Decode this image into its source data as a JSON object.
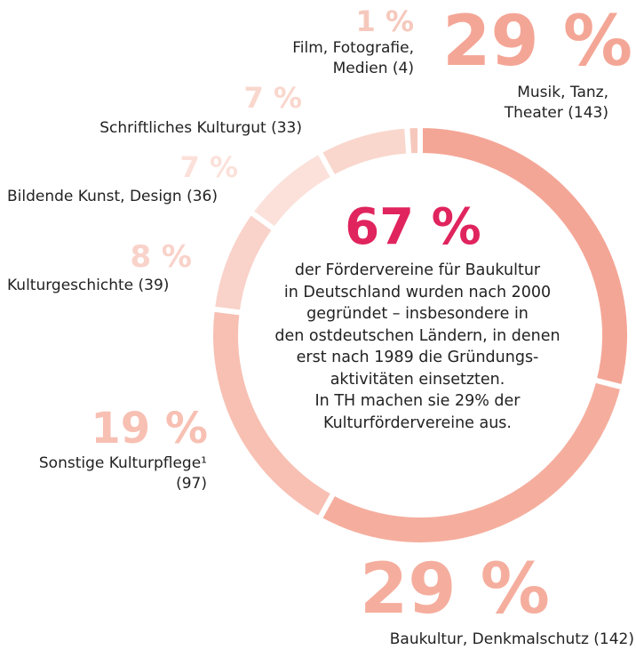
{
  "chart_data": {
    "type": "donut",
    "categories": [
      "Musik, Tanz, Theater (143)",
      "Baukultur, Denkmalschutz (142)",
      "Sonstige Kulturpflege¹ (97)",
      "Kulturgeschichte (39)",
      "Bildende Kunst, Design (36)",
      "Schriftliches Kulturgut (33)",
      "Film, Fotografie, Medien (4)"
    ],
    "values": [
      29,
      29,
      19,
      8,
      7,
      7,
      1
    ],
    "value_labels": [
      "29 %",
      "29 %",
      "19 %",
      "8 %",
      "7 %",
      "7 %",
      "1 %"
    ],
    "colors": [
      "#f4a696",
      "#f5ae9e",
      "#f7c0b3",
      "#f9d2c9",
      "#fbe1da",
      "#f9d7cd",
      "#f6c8bc"
    ],
    "center": {
      "headline": "67 %",
      "lines": [
        "der Fördervereine für Baukultur",
        "in Deutschland wurden nach 2000",
        "gegründet – insbesondere in",
        "den ostdeutschen Ländern, in denen",
        "erst nach 1989 die Gründungs-",
        "aktivitäten einsetzten.",
        "In TH machen sie 29% der",
        "Kulturfördervereine aus."
      ]
    }
  }
}
